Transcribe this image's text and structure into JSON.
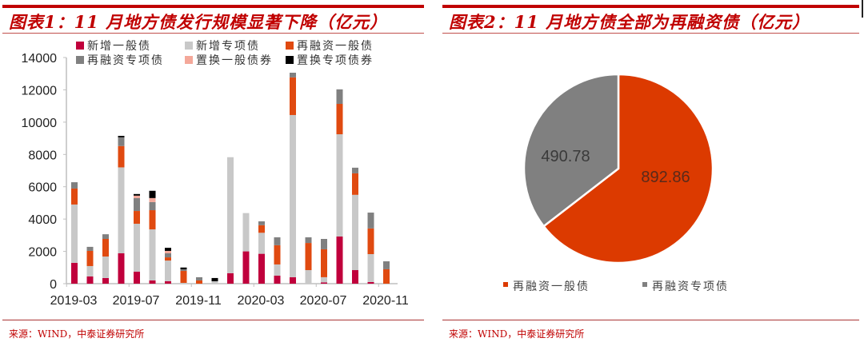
{
  "left_panel": {
    "title": "图表1：11 月地方债发行规模显著下降（亿元）",
    "source": "来源：WIND，中泰证券研究所"
  },
  "right_panel": {
    "title": "图表2：11 月地方债全部为再融资债（亿元）",
    "source": "来源：WIND，中泰证券研究所"
  },
  "colors": {
    "new_general": "#c0003c",
    "new_special": "#c8c8c8",
    "refi_general": "#e04a10",
    "refi_special": "#808080",
    "swap_general": "#f4a89a",
    "swap_special": "#000000",
    "pie_refi_general": "#dc3a00",
    "pie_refi_special": "#808080",
    "title_red": "#c00000"
  },
  "chart_data": [
    {
      "type": "bar",
      "stacked": true,
      "title": "图表1：11 月地方债发行规模显著下降（亿元）",
      "xlabel": "",
      "ylabel": "亿元",
      "ylim": [
        0,
        14000
      ],
      "yticks": [
        0,
        2000,
        4000,
        6000,
        8000,
        10000,
        12000,
        14000
      ],
      "xtick_labels": [
        "2019-03",
        "2019-07",
        "2019-11",
        "2020-03",
        "2020-07",
        "2020-11"
      ],
      "legend_position": "top",
      "grid": false,
      "categories": [
        "2019-03",
        "2019-04",
        "2019-05",
        "2019-06",
        "2019-07",
        "2019-08",
        "2019-09",
        "2019-10",
        "2019-11",
        "2019-12",
        "2020-01",
        "2020-02",
        "2020-03",
        "2020-04",
        "2020-05",
        "2020-06",
        "2020-07",
        "2020-08",
        "2020-09",
        "2020-10",
        "2020-11"
      ],
      "series": [
        {
          "name": "新增一般债",
          "values": [
            1290,
            450,
            350,
            1880,
            740,
            200,
            150,
            0,
            0,
            0,
            650,
            2000,
            1850,
            500,
            400,
            0,
            80,
            2920,
            840,
            100,
            0
          ]
        },
        {
          "name": "新增专项债",
          "values": [
            3610,
            640,
            1330,
            5320,
            2970,
            3160,
            1280,
            50,
            0,
            150,
            7180,
            2370,
            1300,
            690,
            10040,
            840,
            320,
            6330,
            4660,
            1730,
            0
          ]
        },
        {
          "name": "再融资一般债",
          "values": [
            990,
            940,
            1090,
            1320,
            790,
            1190,
            200,
            740,
            200,
            0,
            0,
            0,
            470,
            1190,
            2330,
            1680,
            1730,
            1880,
            1330,
            1590,
            893
          ]
        },
        {
          "name": "再融资专项债",
          "values": [
            390,
            250,
            290,
            540,
            800,
            500,
            250,
            100,
            200,
            0,
            0,
            0,
            240,
            490,
            290,
            350,
            640,
            900,
            350,
            980,
            491
          ]
        },
        {
          "name": "置换一般债券",
          "values": [
            0,
            0,
            0,
            0,
            150,
            250,
            150,
            0,
            0,
            0,
            0,
            0,
            0,
            0,
            0,
            0,
            0,
            0,
            0,
            0,
            0
          ]
        },
        {
          "name": "置换专项债券",
          "values": [
            0,
            0,
            0,
            90,
            100,
            450,
            190,
            110,
            0,
            200,
            0,
            0,
            0,
            0,
            0,
            0,
            0,
            0,
            0,
            0,
            0
          ]
        }
      ]
    },
    {
      "type": "pie",
      "title": "图表2：11 月地方债全部为再融资债（亿元）",
      "labels": [
        "再融资一般债",
        "再融资专项债"
      ],
      "values": [
        892.86,
        490.78
      ],
      "data_labels": [
        "892.86",
        "490.78"
      ],
      "legend_position": "bottom"
    }
  ],
  "legend_left": [
    {
      "label": "新增一般债",
      "color_key": "new_general"
    },
    {
      "label": "新增专项债",
      "color_key": "new_special"
    },
    {
      "label": "再融资一般债",
      "color_key": "refi_general"
    },
    {
      "label": "再融资专项债",
      "color_key": "refi_special"
    },
    {
      "label": "置换一般债券",
      "color_key": "swap_general"
    },
    {
      "label": "置换专项债券",
      "color_key": "swap_special"
    }
  ],
  "legend_right": [
    {
      "label": "再融资一般债",
      "color_key": "pie_refi_general"
    },
    {
      "label": "再融资专项债",
      "color_key": "pie_refi_special"
    }
  ]
}
